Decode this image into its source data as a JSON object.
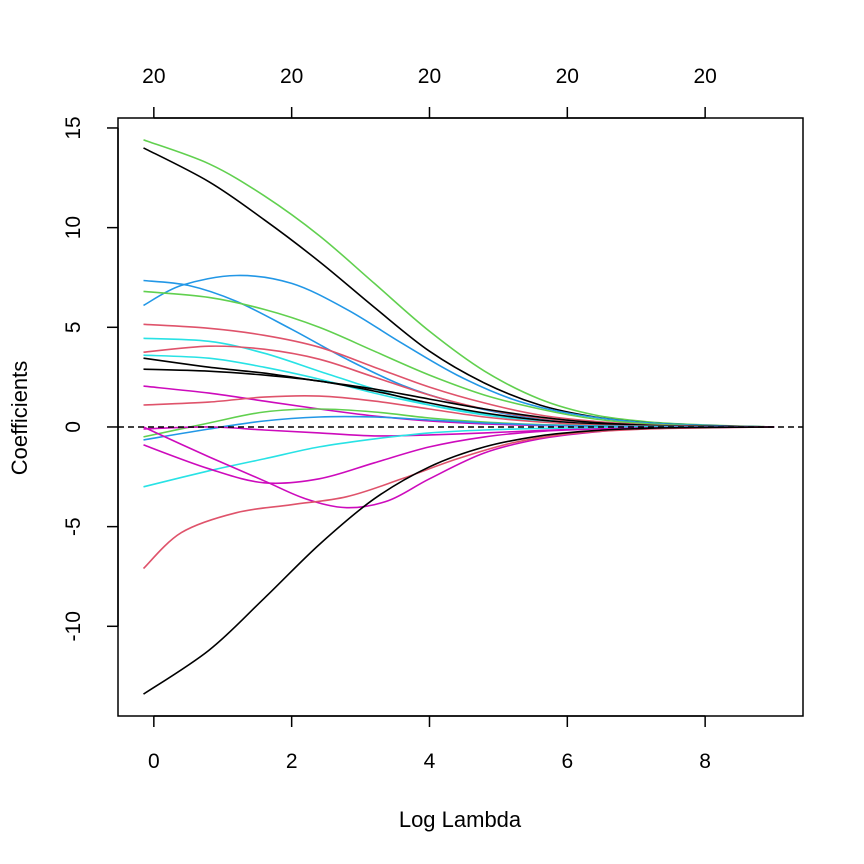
{
  "chart_data": {
    "type": "line",
    "xlabel": "Log Lambda",
    "ylabel": "Coefficients",
    "xlim": [
      -0.52,
      9.42
    ],
    "ylim": [
      -14.5,
      15.5
    ],
    "x_ticks": [
      0,
      2,
      4,
      6,
      8
    ],
    "x_tick_labels": [
      "0",
      "2",
      "4",
      "6",
      "8"
    ],
    "y_ticks": [
      -10,
      -5,
      0,
      5,
      10,
      15
    ],
    "y_tick_labels": [
      "-10",
      "-5",
      "0",
      "5",
      "10",
      "15"
    ],
    "top_axis": {
      "ticks": [
        0,
        2,
        4,
        6,
        8
      ],
      "labels": [
        "20",
        "20",
        "20",
        "20",
        "20"
      ]
    },
    "zero_line": {
      "y": 0,
      "style": "dashed",
      "color": "#000000"
    },
    "grid": false,
    "legend": "none",
    "series": [
      {
        "color": "#61D04F",
        "x": [
          -0.15,
          0.8,
          1.6,
          2.4,
          3.2,
          4.0,
          4.8,
          5.6,
          6.4,
          7.2,
          8.0,
          9.0
        ],
        "values": [
          14.4,
          13.2,
          11.6,
          9.6,
          7.2,
          4.8,
          2.8,
          1.4,
          0.6,
          0.25,
          0.1,
          0.0
        ]
      },
      {
        "color": "#000000",
        "x": [
          -0.15,
          0.8,
          1.6,
          2.4,
          3.2,
          4.0,
          4.8,
          5.6,
          6.4,
          7.2,
          8.0,
          9.0
        ],
        "values": [
          14.0,
          12.3,
          10.4,
          8.3,
          6.0,
          3.8,
          2.2,
          1.1,
          0.5,
          0.2,
          0.08,
          0.0
        ]
      },
      {
        "color": "#2297E6",
        "x": [
          -0.15,
          0.4,
          1.2,
          2.0,
          2.8,
          3.6,
          4.4,
          5.2,
          6.0,
          7.0,
          8.0,
          9.0
        ],
        "values": [
          6.1,
          7.1,
          7.6,
          7.2,
          5.9,
          4.2,
          2.6,
          1.4,
          0.7,
          0.25,
          0.08,
          0.0
        ]
      },
      {
        "color": "#2297E6",
        "x": [
          -0.15,
          0.5,
          1.2,
          2.0,
          2.8,
          3.6,
          4.4,
          5.2,
          6.0,
          7.0,
          8.0,
          9.0
        ],
        "values": [
          7.35,
          7.1,
          6.3,
          4.9,
          3.4,
          2.1,
          1.2,
          0.6,
          0.3,
          0.1,
          0.04,
          0.0
        ]
      },
      {
        "color": "#61D04F",
        "x": [
          -0.15,
          0.8,
          1.6,
          2.4,
          3.2,
          4.0,
          4.8,
          5.6,
          6.4,
          7.2,
          8.0,
          9.0
        ],
        "values": [
          6.8,
          6.5,
          5.9,
          5.0,
          3.8,
          2.6,
          1.6,
          0.9,
          0.4,
          0.15,
          0.05,
          0.0
        ]
      },
      {
        "color": "#DF536B",
        "x": [
          -0.15,
          0.8,
          1.6,
          2.4,
          3.2,
          4.0,
          4.8,
          5.6,
          6.4,
          7.2,
          8.0,
          9.0
        ],
        "values": [
          5.15,
          4.95,
          4.6,
          4.0,
          3.0,
          2.0,
          1.2,
          0.6,
          0.28,
          0.1,
          0.04,
          0.0
        ]
      },
      {
        "color": "#28E2E5",
        "x": [
          -0.15,
          0.8,
          1.6,
          2.4,
          3.2,
          4.0,
          4.8,
          5.6,
          6.4,
          7.2,
          8.0,
          9.0
        ],
        "values": [
          4.45,
          4.3,
          3.7,
          2.8,
          1.9,
          1.1,
          0.6,
          0.3,
          0.12,
          0.05,
          0.02,
          0.0
        ]
      },
      {
        "color": "#DF536B",
        "x": [
          -0.15,
          0.8,
          1.6,
          2.4,
          3.2,
          4.0,
          4.8,
          5.6,
          6.4,
          7.2,
          8.0,
          9.0
        ],
        "values": [
          3.75,
          4.05,
          3.9,
          3.4,
          2.5,
          1.6,
          0.9,
          0.45,
          0.2,
          0.08,
          0.03,
          0.0
        ]
      },
      {
        "color": "#28E2E5",
        "x": [
          -0.15,
          0.8,
          1.6,
          2.4,
          3.2,
          4.0,
          4.8,
          5.6,
          6.4,
          7.2,
          8.0,
          9.0
        ],
        "values": [
          3.6,
          3.45,
          3.0,
          2.4,
          1.7,
          1.1,
          0.65,
          0.35,
          0.15,
          0.06,
          0.02,
          0.0
        ]
      },
      {
        "color": "#000000",
        "x": [
          -0.15,
          0.8,
          1.6,
          2.4,
          3.2,
          4.0,
          4.8,
          5.6,
          6.4,
          7.2,
          8.0,
          9.0
        ],
        "values": [
          3.45,
          3.0,
          2.7,
          2.3,
          1.9,
          1.4,
          0.9,
          0.5,
          0.22,
          0.08,
          0.03,
          0.0
        ]
      },
      {
        "color": "#000000",
        "x": [
          -0.15,
          0.8,
          1.6,
          2.4,
          3.2,
          4.0,
          4.8,
          5.6,
          6.4,
          7.2,
          8.0,
          9.0
        ],
        "values": [
          2.9,
          2.8,
          2.6,
          2.3,
          1.8,
          1.2,
          0.7,
          0.35,
          0.15,
          0.06,
          0.02,
          0.0
        ]
      },
      {
        "color": "#CD0BBC",
        "x": [
          -0.15,
          0.8,
          1.6,
          2.4,
          3.2,
          4.0,
          4.8,
          5.6,
          6.4,
          7.2,
          8.0,
          9.0
        ],
        "values": [
          2.05,
          1.7,
          1.3,
          0.9,
          0.55,
          0.3,
          0.15,
          0.08,
          0.04,
          0.02,
          0.01,
          0.0
        ]
      },
      {
        "color": "#DF536B",
        "x": [
          -0.15,
          0.8,
          1.6,
          2.4,
          3.2,
          4.0,
          4.8,
          5.6,
          6.4,
          7.2,
          8.0,
          9.0
        ],
        "values": [
          1.1,
          1.25,
          1.5,
          1.55,
          1.3,
          0.9,
          0.5,
          0.25,
          0.1,
          0.04,
          0.01,
          0.0
        ]
      },
      {
        "color": "#61D04F",
        "x": [
          -0.15,
          0.8,
          1.6,
          2.4,
          3.2,
          4.0,
          4.8,
          5.6,
          6.4,
          7.2,
          8.0,
          9.0
        ],
        "values": [
          -0.5,
          0.2,
          0.75,
          0.9,
          0.75,
          0.45,
          0.25,
          0.12,
          0.06,
          0.02,
          0.01,
          0.0
        ]
      },
      {
        "color": "#2297E6",
        "x": [
          -0.15,
          0.8,
          1.6,
          2.4,
          3.2,
          4.0,
          4.8,
          5.6,
          6.4,
          7.2,
          8.0,
          9.0
        ],
        "values": [
          -0.65,
          -0.1,
          0.3,
          0.5,
          0.5,
          0.35,
          0.2,
          0.1,
          0.05,
          0.02,
          0.01,
          0.0
        ]
      },
      {
        "color": "#CD0BBC",
        "x": [
          -0.15,
          0.8,
          1.6,
          2.4,
          3.2,
          4.0,
          4.8,
          5.6,
          6.4,
          7.2,
          8.0,
          9.0
        ],
        "values": [
          -0.1,
          0.0,
          -0.15,
          -0.3,
          -0.45,
          -0.4,
          -0.3,
          -0.18,
          -0.08,
          -0.03,
          -0.01,
          0.0
        ]
      },
      {
        "color": "#28E2E5",
        "x": [
          -0.15,
          0.8,
          1.6,
          2.4,
          3.2,
          4.0,
          4.8,
          5.6,
          6.4,
          7.2,
          8.0,
          9.0
        ],
        "values": [
          -3.0,
          -2.2,
          -1.6,
          -1.0,
          -0.6,
          -0.3,
          -0.15,
          -0.07,
          -0.03,
          -0.01,
          0.0,
          0.0
        ]
      },
      {
        "color": "#CD0BBC",
        "x": [
          -0.15,
          0.8,
          1.6,
          2.4,
          3.2,
          4.0,
          4.8,
          5.6,
          6.4,
          7.2,
          8.0,
          9.0
        ],
        "values": [
          -0.9,
          -2.1,
          -2.8,
          -2.6,
          -1.8,
          -1.0,
          -0.5,
          -0.22,
          -0.1,
          -0.04,
          -0.01,
          0.0
        ]
      },
      {
        "color": "#CD0BBC",
        "x": [
          -0.15,
          0.8,
          1.6,
          2.2,
          2.8,
          3.4,
          4.0,
          4.8,
          5.6,
          6.4,
          7.2,
          9.0
        ],
        "values": [
          0.0,
          -1.5,
          -2.7,
          -3.6,
          -4.05,
          -3.7,
          -2.6,
          -1.3,
          -0.6,
          -0.25,
          -0.08,
          0.0
        ]
      },
      {
        "color": "#DF536B",
        "x": [
          -0.15,
          0.4,
          1.2,
          2.0,
          2.8,
          3.6,
          4.4,
          5.2,
          6.0,
          7.0,
          8.0,
          9.0
        ],
        "values": [
          -7.1,
          -5.3,
          -4.3,
          -3.9,
          -3.5,
          -2.6,
          -1.6,
          -0.8,
          -0.35,
          -0.12,
          -0.04,
          0.0
        ]
      },
      {
        "color": "#000000",
        "x": [
          -0.15,
          0.8,
          1.6,
          2.4,
          3.2,
          4.0,
          4.8,
          5.6,
          6.4,
          7.2,
          8.0,
          9.0
        ],
        "values": [
          -13.4,
          -11.2,
          -8.6,
          -5.9,
          -3.6,
          -2.0,
          -1.0,
          -0.45,
          -0.18,
          -0.06,
          -0.02,
          0.0
        ]
      }
    ]
  }
}
